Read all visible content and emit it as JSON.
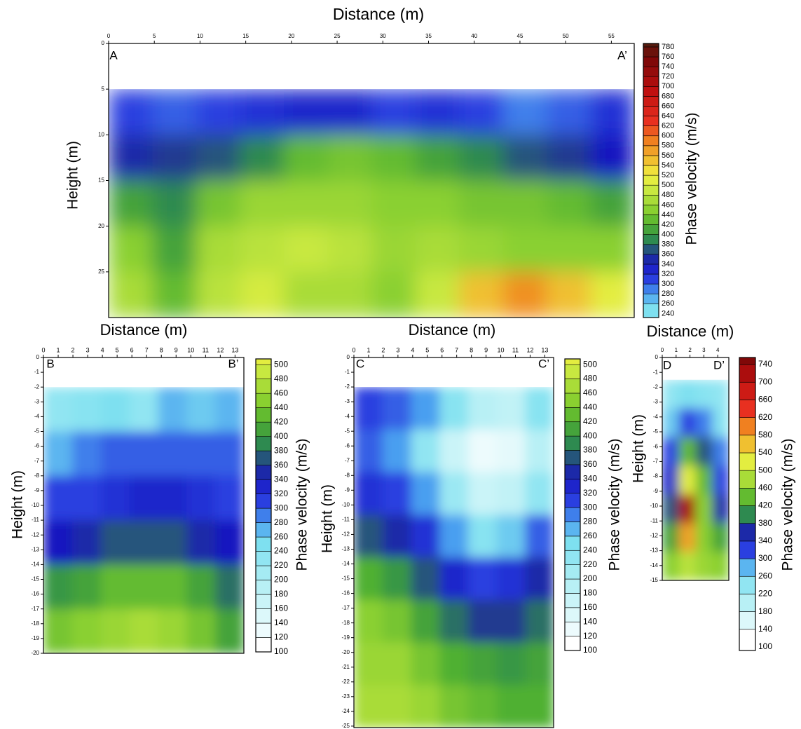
{
  "chart_data": [
    {
      "type": "contour",
      "xlabel": "Distance (m)",
      "ylabel": "Height (m)",
      "colorbar_label": "Phase velocity (m/s)",
      "labels": [
        "A",
        "A’"
      ],
      "xlim": [
        0,
        57.5
      ],
      "ylim": [
        0,
        30
      ],
      "xticks": [
        0,
        5,
        10,
        15,
        20,
        25,
        30,
        35,
        40,
        45,
        50,
        55
      ],
      "yticks": [
        0,
        5,
        10,
        15,
        20,
        25
      ],
      "data_ylim": [
        5,
        30
      ],
      "z": [
        [
          300,
          290,
          300,
          310,
          320,
          320,
          300,
          310,
          300,
          280,
          290,
          310
        ],
        [
          340,
          350,
          360,
          380,
          420,
          430,
          420,
          400,
          380,
          360,
          350,
          330
        ],
        [
          400,
          380,
          430,
          450,
          450,
          450,
          440,
          440,
          430,
          430,
          420,
          400
        ],
        [
          440,
          400,
          460,
          470,
          480,
          470,
          450,
          460,
          450,
          440,
          440,
          440
        ],
        [
          460,
          420,
          470,
          490,
          460,
          460,
          440,
          480,
          540,
          570,
          540,
          500
        ]
      ],
      "clim": [
        232,
        787
      ],
      "cticks": [
        240,
        260,
        280,
        300,
        320,
        340,
        360,
        380,
        400,
        420,
        440,
        460,
        480,
        500,
        520,
        540,
        560,
        580,
        600,
        620,
        640,
        660,
        680,
        700,
        720,
        740,
        760,
        780
      ]
    },
    {
      "type": "contour",
      "xlabel": "Distance (m)",
      "ylabel": "Height (m)",
      "colorbar_label": "Phase velocity (m/s)",
      "labels": [
        "B",
        "B’"
      ],
      "xlim": [
        0,
        13.6
      ],
      "ylim": [
        0,
        -20
      ],
      "xticks": [
        0,
        1,
        2,
        3,
        4,
        5,
        6,
        7,
        8,
        9,
        10,
        11,
        12,
        13
      ],
      "yticks": [
        0,
        -1,
        -2,
        -3,
        -4,
        -5,
        -6,
        -7,
        -8,
        -9,
        -10,
        -11,
        -12,
        -13,
        -14,
        -15,
        -16,
        -17,
        -18,
        -19,
        -20
      ],
      "data_ylim": [
        -2,
        -20
      ],
      "z": [
        [
          220,
          230,
          240,
          220,
          260,
          250,
          260
        ],
        [
          260,
          280,
          290,
          290,
          290,
          290,
          290
        ],
        [
          300,
          300,
          310,
          320,
          320,
          310,
          300
        ],
        [
          330,
          340,
          360,
          360,
          360,
          340,
          330
        ],
        [
          390,
          400,
          420,
          420,
          420,
          400,
          370
        ],
        [
          430,
          440,
          450,
          460,
          450,
          430,
          400
        ]
      ],
      "clim": [
        100,
        508
      ],
      "cticks": [
        100,
        120,
        140,
        160,
        180,
        200,
        220,
        240,
        260,
        280,
        300,
        320,
        340,
        360,
        380,
        400,
        420,
        440,
        460,
        480,
        500
      ]
    },
    {
      "type": "contour",
      "xlabel": "Distance (m)",
      "ylabel": "Height (m)",
      "colorbar_label": "Phase velocity (m/s)",
      "labels": [
        "C",
        "C’"
      ],
      "xlim": [
        0,
        13.6
      ],
      "ylim": [
        0,
        -25.1
      ],
      "xticks": [
        0,
        1,
        2,
        3,
        4,
        5,
        6,
        7,
        8,
        9,
        10,
        11,
        12,
        13
      ],
      "yticks": [
        0,
        -1,
        -2,
        -3,
        -4,
        -5,
        -6,
        -7,
        -8,
        -9,
        -10,
        -11,
        -12,
        -13,
        -14,
        -15,
        -16,
        -17,
        -18,
        -19,
        -20,
        -21,
        -22,
        -23,
        -24,
        -25
      ],
      "data_ylim": [
        -2,
        -25.1
      ],
      "z": [
        [
          300,
          290,
          270,
          230,
          180,
          170,
          230
        ],
        [
          290,
          270,
          220,
          160,
          120,
          130,
          180
        ],
        [
          310,
          300,
          270,
          210,
          160,
          170,
          220
        ],
        [
          360,
          340,
          310,
          270,
          230,
          250,
          290
        ],
        [
          410,
          390,
          360,
          320,
          300,
          310,
          340
        ],
        [
          440,
          430,
          400,
          370,
          350,
          350,
          370
        ],
        [
          450,
          450,
          430,
          410,
          400,
          390,
          400
        ],
        [
          460,
          460,
          450,
          430,
          420,
          410,
          410
        ]
      ],
      "clim": [
        100,
        508
      ],
      "cticks": [
        100,
        120,
        140,
        160,
        180,
        200,
        220,
        240,
        260,
        280,
        300,
        320,
        340,
        360,
        380,
        400,
        420,
        440,
        460,
        480,
        500
      ]
    },
    {
      "type": "contour",
      "xlabel": "Distance (m)",
      "ylabel": "Height (m)",
      "colorbar_label": "Phase velocity (m/s)",
      "labels": [
        "D",
        "D’"
      ],
      "xlim": [
        0,
        4.8
      ],
      "ylim": [
        0,
        -15
      ],
      "xticks": [
        0,
        1,
        2,
        3,
        4
      ],
      "yticks": [
        0,
        -1,
        -2,
        -3,
        -4,
        -5,
        -6,
        -7,
        -8,
        -9,
        -10,
        -11,
        -12,
        -13,
        -14,
        -15
      ],
      "data_ylim": [
        -1.5,
        -15
      ],
      "z": [
        [
          220,
          240,
          230,
          220
        ],
        [
          250,
          300,
          280,
          230
        ],
        [
          300,
          420,
          360,
          280
        ],
        [
          320,
          500,
          420,
          300
        ],
        [
          360,
          700,
          440,
          340
        ],
        [
          400,
          560,
          440,
          400
        ],
        [
          440,
          470,
          450,
          440
        ]
      ],
      "clim": [
        92,
        756
      ],
      "cticks": [
        100,
        140,
        180,
        220,
        260,
        300,
        340,
        380,
        420,
        460,
        500,
        540,
        580,
        620,
        660,
        700,
        740
      ]
    }
  ],
  "colormap": [
    {
      "value": 100,
      "color": "#ffffff"
    },
    {
      "value": 180,
      "color": "#b8f0f5"
    },
    {
      "value": 240,
      "color": "#7ee0f0"
    },
    {
      "value": 270,
      "color": "#4a9ff0"
    },
    {
      "value": 300,
      "color": "#2a3fe0"
    },
    {
      "value": 330,
      "color": "#1818c0"
    },
    {
      "value": 350,
      "color": "#203a90"
    },
    {
      "value": 380,
      "color": "#2e8a50"
    },
    {
      "value": 410,
      "color": "#50b030"
    },
    {
      "value": 440,
      "color": "#8ad030"
    },
    {
      "value": 480,
      "color": "#c8e840"
    },
    {
      "value": 510,
      "color": "#f0f040"
    },
    {
      "value": 540,
      "color": "#f0c030"
    },
    {
      "value": 580,
      "color": "#f08020"
    },
    {
      "value": 620,
      "color": "#e83020"
    },
    {
      "value": 680,
      "color": "#c01010"
    },
    {
      "value": 740,
      "color": "#800808"
    },
    {
      "value": 790,
      "color": "#4a2010"
    }
  ]
}
